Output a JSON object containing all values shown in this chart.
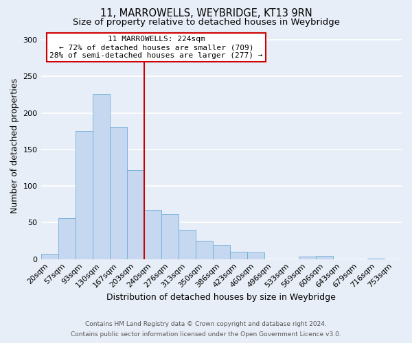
{
  "title": "11, MARROWELLS, WEYBRIDGE, KT13 9RN",
  "subtitle": "Size of property relative to detached houses in Weybridge",
  "xlabel": "Distribution of detached houses by size in Weybridge",
  "ylabel": "Number of detached properties",
  "bar_labels": [
    "20sqm",
    "57sqm",
    "93sqm",
    "130sqm",
    "167sqm",
    "203sqm",
    "240sqm",
    "276sqm",
    "313sqm",
    "350sqm",
    "386sqm",
    "423sqm",
    "460sqm",
    "496sqm",
    "533sqm",
    "569sqm",
    "606sqm",
    "643sqm",
    "679sqm",
    "716sqm",
    "753sqm"
  ],
  "bar_values": [
    7,
    56,
    175,
    226,
    181,
    122,
    67,
    62,
    40,
    25,
    19,
    10,
    9,
    0,
    0,
    3,
    4,
    0,
    0,
    1,
    0
  ],
  "bar_color": "#c5d8ef",
  "bar_edge_color": "#6baed6",
  "ylim": [
    0,
    310
  ],
  "yticks": [
    0,
    50,
    100,
    150,
    200,
    250,
    300
  ],
  "vline_x": 6.0,
  "vline_color": "#cc0000",
  "annotation_title": "11 MARROWELLS: 224sqm",
  "annotation_line1": "← 72% of detached houses are smaller (709)",
  "annotation_line2": "28% of semi-detached houses are larger (277) →",
  "annotation_box_edge_color": "#cc0000",
  "footer_line1": "Contains HM Land Registry data © Crown copyright and database right 2024.",
  "footer_line2": "Contains public sector information licensed under the Open Government Licence v3.0.",
  "fig_background_color": "#e8eef7",
  "plot_background": "#e8eef7",
  "grid_color": "#ffffff",
  "title_fontsize": 10.5,
  "subtitle_fontsize": 9.5,
  "axis_label_fontsize": 9,
  "tick_fontsize": 8,
  "annotation_fontsize": 8,
  "footer_fontsize": 6.5
}
